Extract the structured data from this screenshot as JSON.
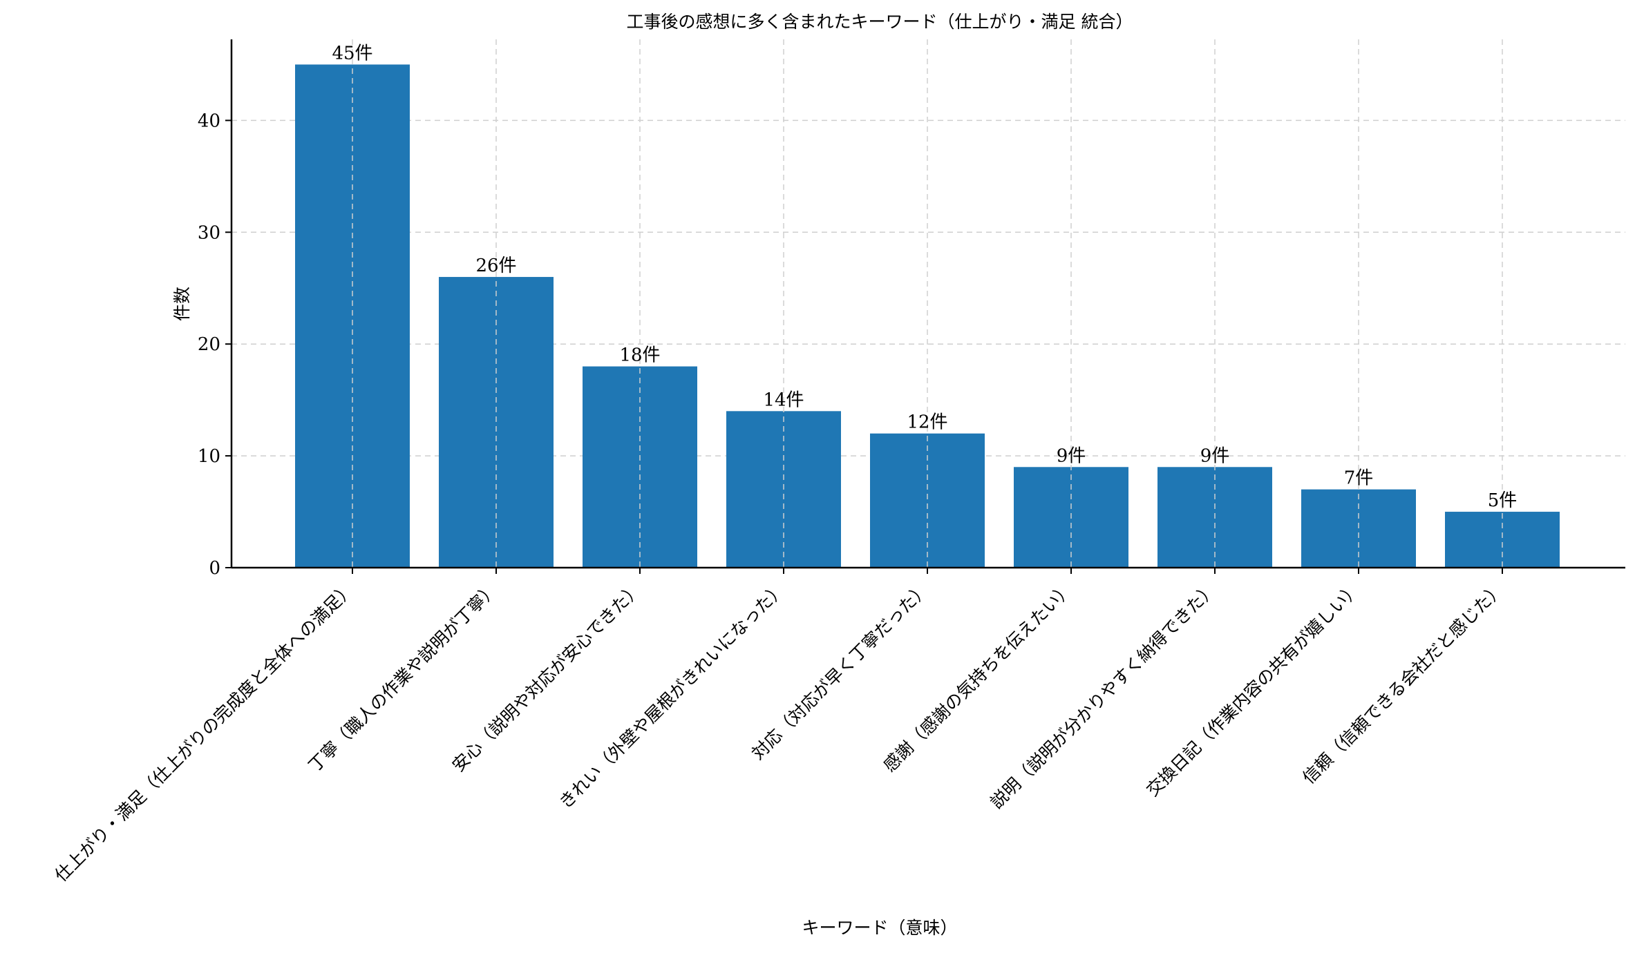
{
  "chart_data": {
    "type": "bar",
    "title": "工事後の感想に多く含まれたキーワード（仕上がり・満足 統合）",
    "xlabel": "キーワード（意味）",
    "ylabel": "件数",
    "categories": [
      "仕上がり・満足（仕上がりの完成度と全体への満足）",
      "丁寧（職人の作業や説明が丁寧）",
      "安心（説明や対応が安心できた）",
      "きれい（外壁や屋根がきれいになった）",
      "対応（対応が早く丁寧だった）",
      "感謝（感謝の気持ちを伝えたい）",
      "説明（説明が分かりやすく納得できた）",
      "交換日記（作業内容の共有が嬉しい）",
      "信頼（信頼できる会社だと感じた）"
    ],
    "values": [
      45,
      26,
      18,
      14,
      12,
      9,
      9,
      7,
      5
    ],
    "data_labels": [
      "45件",
      "26件",
      "18件",
      "14件",
      "12件",
      "9件",
      "9件",
      "7件",
      "5件"
    ],
    "yticks": [
      "0",
      "10",
      "20",
      "30",
      "40"
    ],
    "ylim": [
      0,
      47.25
    ],
    "grid": true,
    "bar_color": "#1f77b4"
  }
}
